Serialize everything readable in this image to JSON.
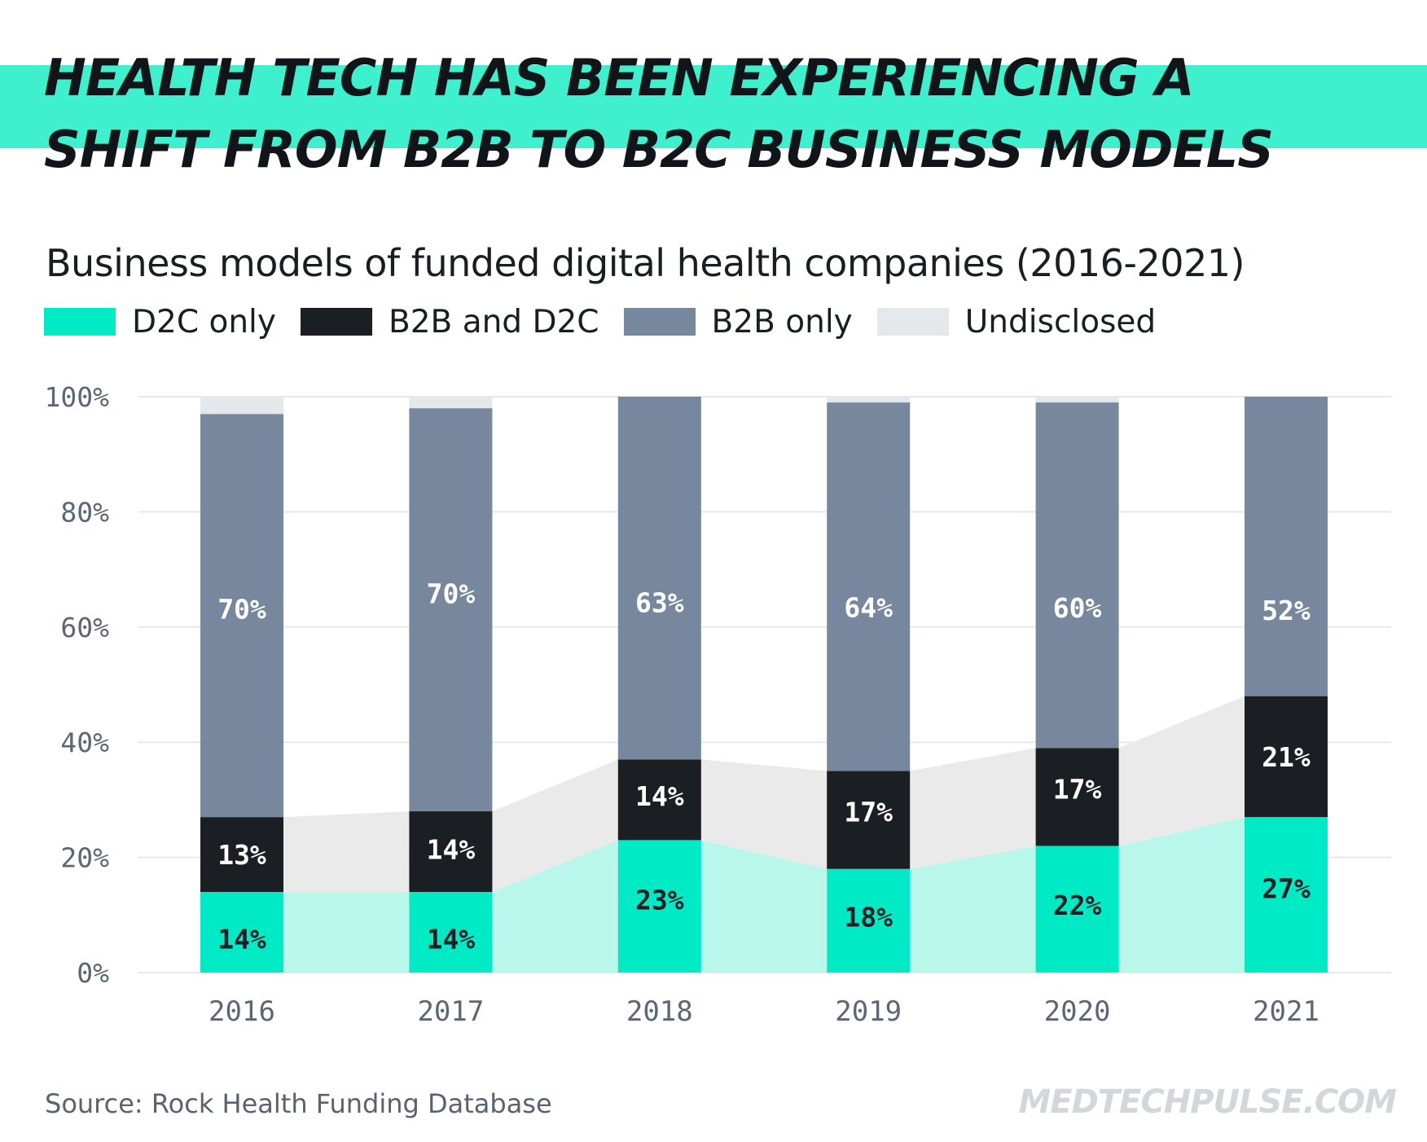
{
  "headline": {
    "line1": "HEALTH TECH HAS BEEN EXPERIENCING A",
    "line2": "SHIFT FROM B2B TO B2C BUSINESS MODELS"
  },
  "colors": {
    "accent": "#3ef0cd",
    "d2c": "#00eac6",
    "b2b_and_d2c": "#1b1e22",
    "b2b": "#77889e",
    "undisclosed": "#e4e8eb",
    "d2c_area": "#b9f7ea",
    "mix_area": "#eaeaea",
    "grid": "#e6e8eb",
    "axis_text": "#5c6675"
  },
  "legend": [
    {
      "label": "D2C only",
      "color": "#00eac6"
    },
    {
      "label": "B2B and D2C",
      "color": "#1b1e22"
    },
    {
      "label": "B2B only",
      "color": "#77889e"
    },
    {
      "label": "Undisclosed",
      "color": "#e4e8eb"
    }
  ],
  "chart_data": {
    "type": "bar",
    "stacked": true,
    "title": "Business models of funded digital health companies (2016-2021)",
    "categories": [
      "2016",
      "2017",
      "2018",
      "2019",
      "2020",
      "2021"
    ],
    "series": [
      {
        "name": "D2C only",
        "values": [
          14,
          14,
          23,
          18,
          22,
          27
        ],
        "labels": [
          "14%",
          "14%",
          "23%",
          "18%",
          "22%",
          "27%"
        ]
      },
      {
        "name": "B2B and D2C",
        "values": [
          13,
          14,
          14,
          17,
          17,
          21
        ],
        "labels": [
          "13%",
          "14%",
          "14%",
          "17%",
          "17%",
          "21%"
        ]
      },
      {
        "name": "B2B only",
        "values": [
          70,
          70,
          63,
          64,
          60,
          52
        ],
        "labels": [
          "70%",
          "70%",
          "63%",
          "64%",
          "60%",
          "52%"
        ]
      },
      {
        "name": "Undisclosed",
        "values": [
          3,
          2,
          0,
          1,
          1,
          0
        ],
        "labels": [
          "",
          "",
          "",
          "",
          "",
          ""
        ]
      }
    ],
    "xlabel": "",
    "ylabel": "",
    "ylim": [
      0,
      100
    ],
    "yticks": [
      "0%",
      "20%",
      "40%",
      "60%",
      "80%",
      "100%"
    ],
    "grid": true,
    "legend_position": "top-left"
  },
  "footer": {
    "source": "Source: Rock Health Funding Database",
    "brand": "MEDTECHPULSE.COM"
  }
}
